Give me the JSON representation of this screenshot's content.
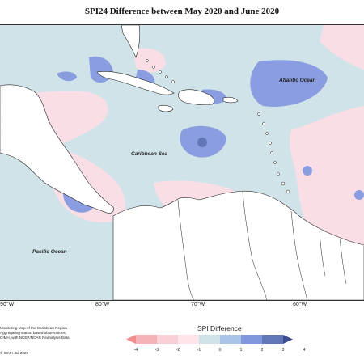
{
  "title": "SPI24 Difference between May 2020 and June 2020",
  "map_labels": {
    "atlantic": "Atlantic Ocean",
    "caribbean": "Caribbean Sea",
    "pacific": "Pacific Ocean"
  },
  "longitude_labels": [
    "90°W",
    "80°W",
    "70°W",
    "60°W"
  ],
  "legend": {
    "title": "SPI Difference",
    "ticks": [
      "-4",
      "-3",
      "-2",
      "-1",
      "0",
      "1",
      "2",
      "3",
      "4"
    ],
    "colors": [
      "#f28b8e",
      "#f5b3b8",
      "#f9d0d6",
      "#fde5ea",
      "#cfe3e8",
      "#a9c4e6",
      "#7f97dc",
      "#6277b8",
      "#3d4c8e"
    ]
  },
  "notes": [
    "Monitoring Map of the Caribbean Region.",
    "Aggregating station based observations,",
    "CIMH, with NCEP/NCAR Reanalysis Data"
  ],
  "credit": "© CIMH  Jul 2020",
  "colors": {
    "background_sea": "#cfe3e8",
    "land": "#ffffff",
    "wetter": "#8a9de0",
    "drier": "#f9dfe5"
  }
}
